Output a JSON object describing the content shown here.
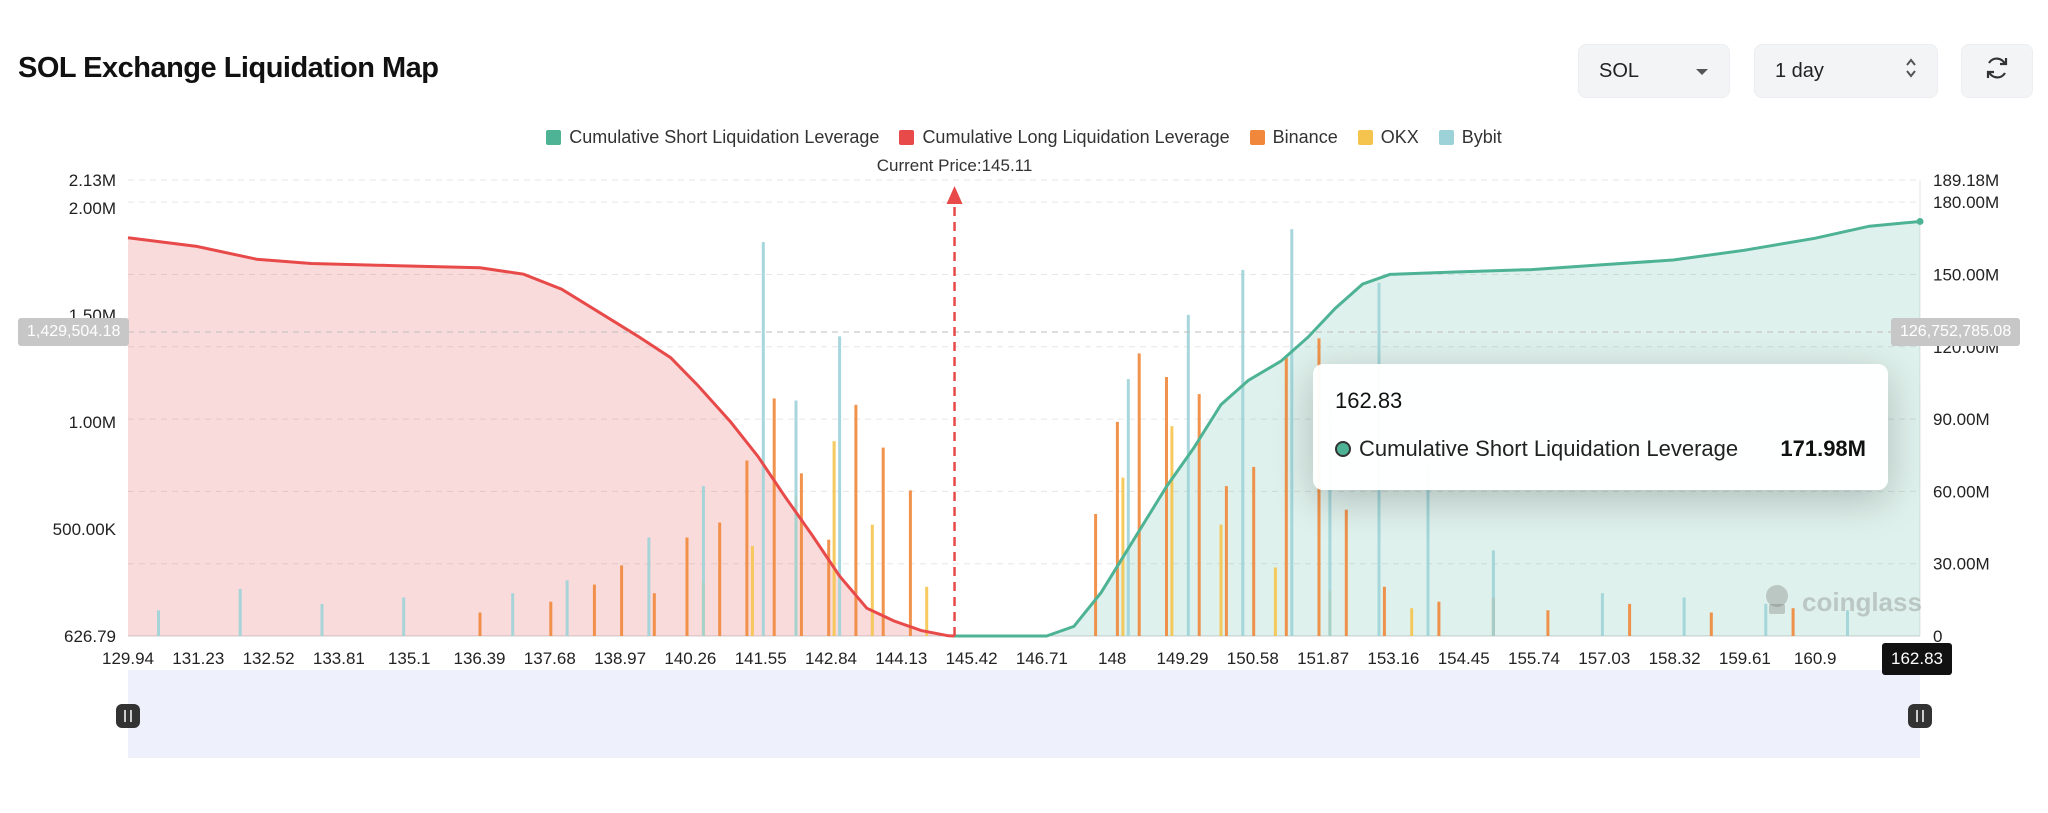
{
  "page": {
    "title": "SOL Exchange Liquidation Map"
  },
  "controls": {
    "symbol": "SOL",
    "period": "1 day",
    "refresh_icon": "refresh-icon",
    "chevron_icon": "chevron-down-icon",
    "stepper_icon": "up-down-stepper-icon"
  },
  "legend": [
    {
      "label": "Cumulative Short Liquidation Leverage",
      "color": "#4db394"
    },
    {
      "label": "Cumulative Long Liquidation Leverage",
      "color": "#e84a4a"
    },
    {
      "label": "Binance",
      "color": "#f0873a"
    },
    {
      "label": "OKX",
      "color": "#f5c44e"
    },
    {
      "label": "Bybit",
      "color": "#9dd3d8"
    }
  ],
  "current_price_label": "Current Price:145.11",
  "crosshair": {
    "left_value": "1,429,504.18",
    "right_value": "126,752,785.08",
    "x_value": "162.83"
  },
  "tooltip": {
    "x": "162.83",
    "series": "Cumulative Short Liquidation Leverage",
    "value": "171.98M"
  },
  "watermark": "coinglass",
  "chart_data": {
    "type": "bar",
    "title": "SOL Exchange Liquidation Map",
    "x_axis": {
      "ticks": [
        "129.94",
        "131.23",
        "132.52",
        "133.81",
        "135.1",
        "136.39",
        "137.68",
        "138.97",
        "140.26",
        "141.55",
        "142.84",
        "144.13",
        "145.42",
        "146.71",
        "148",
        "149.29",
        "150.58",
        "151.87",
        "153.16",
        "154.45",
        "155.74",
        "157.03",
        "158.32",
        "159.61",
        "160.9",
        "162.83"
      ],
      "range": [
        129.94,
        162.83
      ]
    },
    "y_left": {
      "ticks": [
        "2.13M",
        "2.00M",
        "1.50M",
        "1.00M",
        "500.00K",
        "626.79"
      ],
      "range": [
        0,
        2130000
      ]
    },
    "y_right": {
      "ticks": [
        "189.18M",
        "180.00M",
        "150.00M",
        "120.00M",
        "90.00M",
        "60.00M",
        "30.00M",
        "0"
      ],
      "range": [
        0,
        189180000
      ]
    },
    "current_price": 145.11,
    "series": [
      {
        "name": "Cumulative Long Liquidation Leverage",
        "type": "area",
        "color": "#e84a4a",
        "axis": "left",
        "points": [
          [
            129.94,
            1860000
          ],
          [
            131.2,
            1820000
          ],
          [
            132.3,
            1760000
          ],
          [
            133.3,
            1740000
          ],
          [
            134.8,
            1730000
          ],
          [
            136.4,
            1720000
          ],
          [
            137.2,
            1690000
          ],
          [
            137.9,
            1620000
          ],
          [
            138.6,
            1510000
          ],
          [
            139.3,
            1400000
          ],
          [
            139.9,
            1300000
          ],
          [
            140.4,
            1170000
          ],
          [
            141.0,
            1000000
          ],
          [
            141.5,
            840000
          ],
          [
            142.0,
            650000
          ],
          [
            142.5,
            470000
          ],
          [
            143.0,
            280000
          ],
          [
            143.5,
            130000
          ],
          [
            144.0,
            70000
          ],
          [
            144.5,
            25000
          ],
          [
            145.0,
            1000
          ],
          [
            145.11,
            0
          ]
        ]
      },
      {
        "name": "Cumulative Short Liquidation Leverage",
        "type": "area",
        "color": "#4db394",
        "axis": "right",
        "points": [
          [
            145.11,
            0
          ],
          [
            146.8,
            0
          ],
          [
            147.3,
            4000000
          ],
          [
            147.8,
            18000000
          ],
          [
            148.4,
            40000000
          ],
          [
            149.0,
            62000000
          ],
          [
            149.5,
            78000000
          ],
          [
            150.0,
            96000000
          ],
          [
            150.5,
            106000000
          ],
          [
            151.1,
            114000000
          ],
          [
            151.6,
            124000000
          ],
          [
            152.1,
            136000000
          ],
          [
            152.6,
            146000000
          ],
          [
            153.1,
            150000000
          ],
          [
            154.3,
            151000000
          ],
          [
            155.7,
            152000000
          ],
          [
            157.0,
            154000000
          ],
          [
            158.3,
            156000000
          ],
          [
            159.6,
            160000000
          ],
          [
            160.9,
            165000000
          ],
          [
            161.9,
            170000000
          ],
          [
            162.83,
            171980000
          ]
        ]
      },
      {
        "name": "Binance",
        "type": "bar",
        "color": "#f0873a",
        "axis": "left",
        "points": [
          [
            136.4,
            110000
          ],
          [
            137.7,
            160000
          ],
          [
            138.5,
            240000
          ],
          [
            139.0,
            330000
          ],
          [
            139.6,
            200000
          ],
          [
            140.2,
            460000
          ],
          [
            140.8,
            530000
          ],
          [
            141.3,
            820000
          ],
          [
            141.8,
            1110000
          ],
          [
            142.3,
            760000
          ],
          [
            142.8,
            450000
          ],
          [
            143.3,
            1080000
          ],
          [
            143.8,
            880000
          ],
          [
            144.3,
            680000
          ],
          [
            147.7,
            570000
          ],
          [
            148.1,
            1000000
          ],
          [
            148.5,
            1320000
          ],
          [
            149.0,
            1210000
          ],
          [
            149.6,
            1130000
          ],
          [
            150.1,
            700000
          ],
          [
            150.6,
            790000
          ],
          [
            151.2,
            1300000
          ],
          [
            151.8,
            1390000
          ],
          [
            152.3,
            590000
          ],
          [
            153.0,
            230000
          ],
          [
            154.0,
            160000
          ],
          [
            155.0,
            180000
          ],
          [
            156.0,
            120000
          ],
          [
            157.5,
            150000
          ],
          [
            159.0,
            110000
          ],
          [
            160.5,
            130000
          ]
        ]
      },
      {
        "name": "OKX",
        "type": "bar",
        "color": "#f5c44e",
        "axis": "left",
        "points": [
          [
            140.5,
            250000
          ],
          [
            141.4,
            420000
          ],
          [
            142.2,
            650000
          ],
          [
            142.9,
            910000
          ],
          [
            143.6,
            520000
          ],
          [
            144.6,
            230000
          ],
          [
            148.2,
            740000
          ],
          [
            149.1,
            980000
          ],
          [
            150.0,
            520000
          ],
          [
            151.0,
            320000
          ],
          [
            152.0,
            210000
          ],
          [
            153.5,
            130000
          ]
        ]
      },
      {
        "name": "Bybit",
        "type": "bar",
        "color": "#9dd3d8",
        "axis": "left",
        "points": [
          [
            130.5,
            120000
          ],
          [
            132.0,
            220000
          ],
          [
            133.5,
            150000
          ],
          [
            135.0,
            180000
          ],
          [
            137.0,
            200000
          ],
          [
            138.0,
            260000
          ],
          [
            139.5,
            460000
          ],
          [
            140.5,
            700000
          ],
          [
            141.6,
            1840000
          ],
          [
            142.2,
            1100000
          ],
          [
            143.0,
            1400000
          ],
          [
            148.3,
            1200000
          ],
          [
            149.4,
            1500000
          ],
          [
            150.4,
            1710000
          ],
          [
            151.3,
            1900000
          ],
          [
            152.0,
            1100000
          ],
          [
            152.9,
            1650000
          ],
          [
            153.8,
            800000
          ],
          [
            155.0,
            400000
          ],
          [
            157.0,
            200000
          ],
          [
            158.5,
            180000
          ],
          [
            160.0,
            150000
          ],
          [
            161.5,
            120000
          ]
        ]
      }
    ],
    "legend_position": "top-center",
    "grid": true
  }
}
